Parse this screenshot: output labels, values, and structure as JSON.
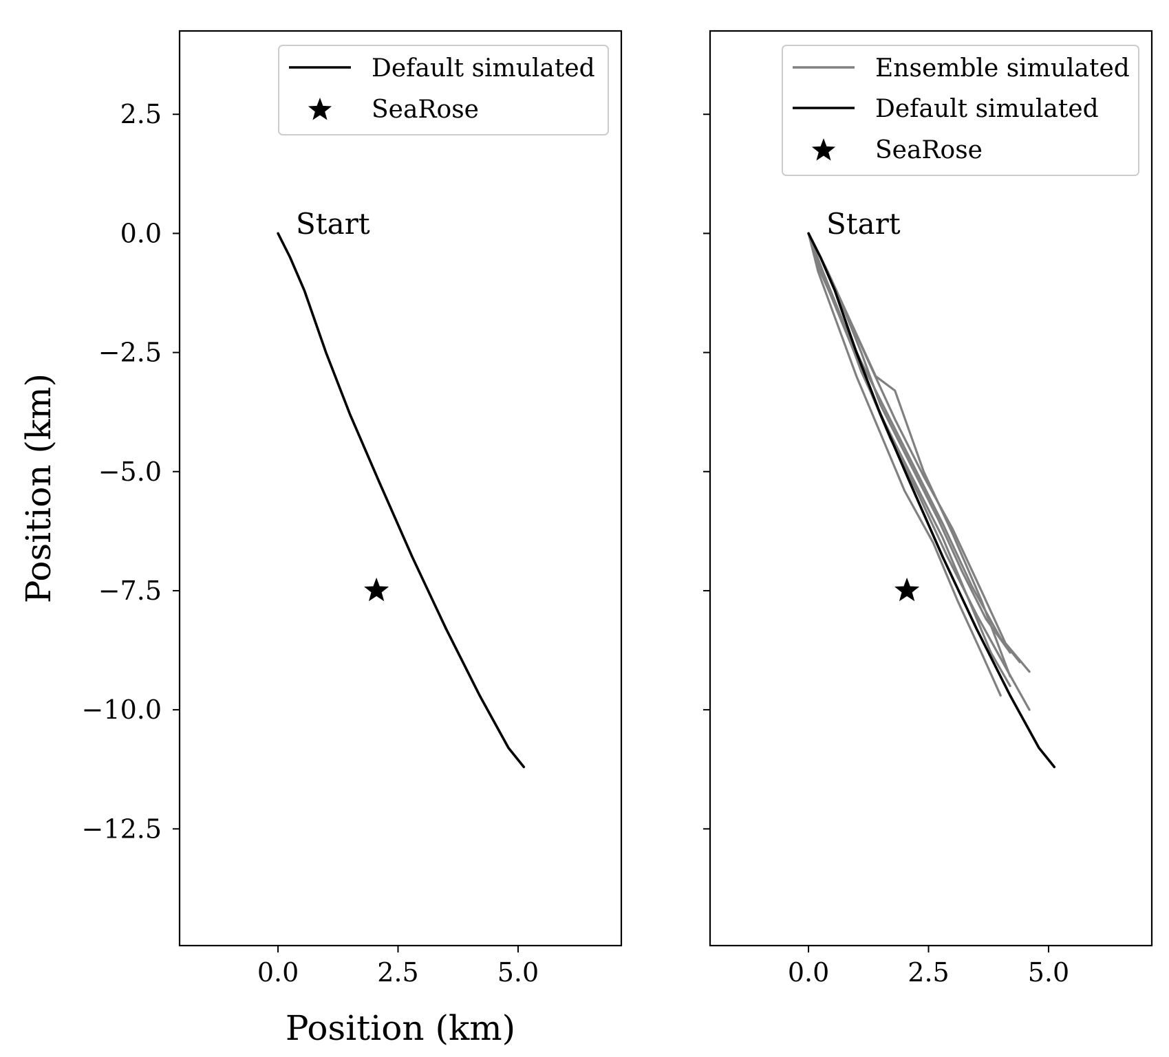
{
  "chart_data": [
    {
      "type": "line",
      "xlabel": "Position (km)",
      "ylabel": "Position (km)",
      "xlim": [
        -2.05,
        7.15
      ],
      "ylim": [
        -14.95,
        4.25
      ],
      "xticks": [
        0.0,
        2.5,
        5.0
      ],
      "xtick_labels": [
        "0.0",
        "2.5",
        "5.0"
      ],
      "yticks": [
        2.5,
        0.0,
        -2.5,
        -5.0,
        -7.5,
        -10.0,
        -12.5
      ],
      "ytick_labels": [
        "2.5",
        "0.0",
        "−2.5",
        "−5.0",
        "−7.5",
        "−10.0",
        "−12.5"
      ],
      "grid": false,
      "legend_position": "top-right",
      "legend": [
        {
          "label": "Default simulated",
          "kind": "line",
          "color": "#000000"
        },
        {
          "label": "SeaRose",
          "kind": "star",
          "color": "#000000"
        }
      ],
      "annotations": [
        {
          "text": "Start",
          "x": 0.4,
          "y": 0.0
        }
      ],
      "markers": [
        {
          "name": "SeaRose",
          "x": 2.05,
          "y": -7.5
        }
      ],
      "series": [
        {
          "name": "Default simulated",
          "color": "#000000",
          "x": [
            0.0,
            0.25,
            0.55,
            1.0,
            1.5,
            2.1,
            2.8,
            3.5,
            4.2,
            4.8,
            5.12
          ],
          "y": [
            0.0,
            -0.5,
            -1.2,
            -2.5,
            -3.8,
            -5.2,
            -6.8,
            -8.3,
            -9.7,
            -10.8,
            -11.2
          ]
        }
      ]
    },
    {
      "type": "line",
      "xlabel": "",
      "ylabel": "",
      "xlim": [
        -2.05,
        7.15
      ],
      "ylim": [
        -14.95,
        4.25
      ],
      "xticks": [
        0.0,
        2.5,
        5.0
      ],
      "xtick_labels": [
        "0.0",
        "2.5",
        "5.0"
      ],
      "yticks": [
        2.5,
        0.0,
        -2.5,
        -5.0,
        -7.5,
        -10.0,
        -12.5
      ],
      "ytick_labels": [],
      "grid": false,
      "legend_position": "top-right",
      "legend": [
        {
          "label": "Ensemble simulated",
          "kind": "line",
          "color": "#808080"
        },
        {
          "label": "Default simulated",
          "kind": "line",
          "color": "#000000"
        },
        {
          "label": "SeaRose",
          "kind": "star",
          "color": "#000000"
        }
      ],
      "annotations": [
        {
          "text": "Start",
          "x": 0.4,
          "y": 0.0
        }
      ],
      "markers": [
        {
          "name": "SeaRose",
          "x": 2.05,
          "y": -7.5
        }
      ],
      "series": [
        {
          "name": "Ensemble simulated",
          "color": "#808080",
          "x": [
            0.0,
            0.3,
            0.7,
            1.1,
            1.6,
            2.2,
            2.8,
            3.3,
            3.8,
            4.2
          ],
          "y": [
            0.0,
            -0.8,
            -1.8,
            -2.9,
            -4.0,
            -5.2,
            -6.4,
            -7.6,
            -8.8,
            -9.5
          ]
        },
        {
          "name": "Ensemble simulated",
          "color": "#808080",
          "x": [
            0.0,
            0.35,
            0.8,
            1.3,
            1.8,
            2.4,
            3.0,
            3.6,
            4.1,
            4.6
          ],
          "y": [
            0.0,
            -0.7,
            -1.7,
            -2.8,
            -3.9,
            -5.1,
            -6.2,
            -7.5,
            -8.6,
            -9.2
          ]
        },
        {
          "name": "Ensemble simulated",
          "color": "#808080",
          "x": [
            0.0,
            0.2,
            0.6,
            1.0,
            1.5,
            2.0,
            2.6,
            3.1,
            3.6,
            4.0
          ],
          "y": [
            0.0,
            -0.8,
            -1.9,
            -3.0,
            -4.2,
            -5.4,
            -6.5,
            -7.7,
            -8.8,
            -9.7
          ]
        },
        {
          "name": "Ensemble simulated",
          "color": "#808080",
          "x": [
            0.0,
            0.3,
            0.75,
            1.2,
            1.7,
            2.3,
            2.9,
            3.5,
            4.1,
            4.6
          ],
          "y": [
            0.0,
            -0.9,
            -2.0,
            -3.1,
            -4.3,
            -5.5,
            -6.8,
            -8.0,
            -9.1,
            -10.0
          ]
        },
        {
          "name": "Ensemble simulated",
          "color": "#808080",
          "x": [
            0.0,
            0.4,
            0.9,
            1.4,
            1.8,
            2.4,
            3.0,
            3.6,
            4.2
          ],
          "y": [
            0.0,
            -0.8,
            -1.9,
            -3.0,
            -3.3,
            -5.0,
            -6.3,
            -7.7,
            -9.3
          ]
        },
        {
          "name": "Ensemble simulated",
          "color": "#808080",
          "x": [
            0.0,
            0.3,
            0.7,
            1.1,
            1.5,
            2.1,
            2.7,
            3.2,
            3.7,
            4.2
          ],
          "y": [
            0.0,
            -0.6,
            -1.5,
            -2.5,
            -3.6,
            -4.8,
            -6.0,
            -7.1,
            -8.1,
            -8.8
          ]
        },
        {
          "name": "Ensemble simulated",
          "color": "#808080",
          "x": [
            0.0,
            0.2,
            0.6,
            1.1,
            1.6,
            2.2,
            2.8,
            3.4,
            4.0,
            4.4
          ],
          "y": [
            0.0,
            -0.7,
            -1.6,
            -2.7,
            -3.7,
            -4.9,
            -6.1,
            -7.4,
            -8.5,
            -9.0
          ]
        },
        {
          "name": "Default simulated",
          "color": "#000000",
          "x": [
            0.0,
            0.25,
            0.55,
            1.0,
            1.5,
            2.1,
            2.8,
            3.5,
            4.2,
            4.8,
            5.12
          ],
          "y": [
            0.0,
            -0.5,
            -1.2,
            -2.5,
            -3.8,
            -5.2,
            -6.8,
            -8.3,
            -9.7,
            -10.8,
            -11.2
          ]
        }
      ]
    }
  ]
}
